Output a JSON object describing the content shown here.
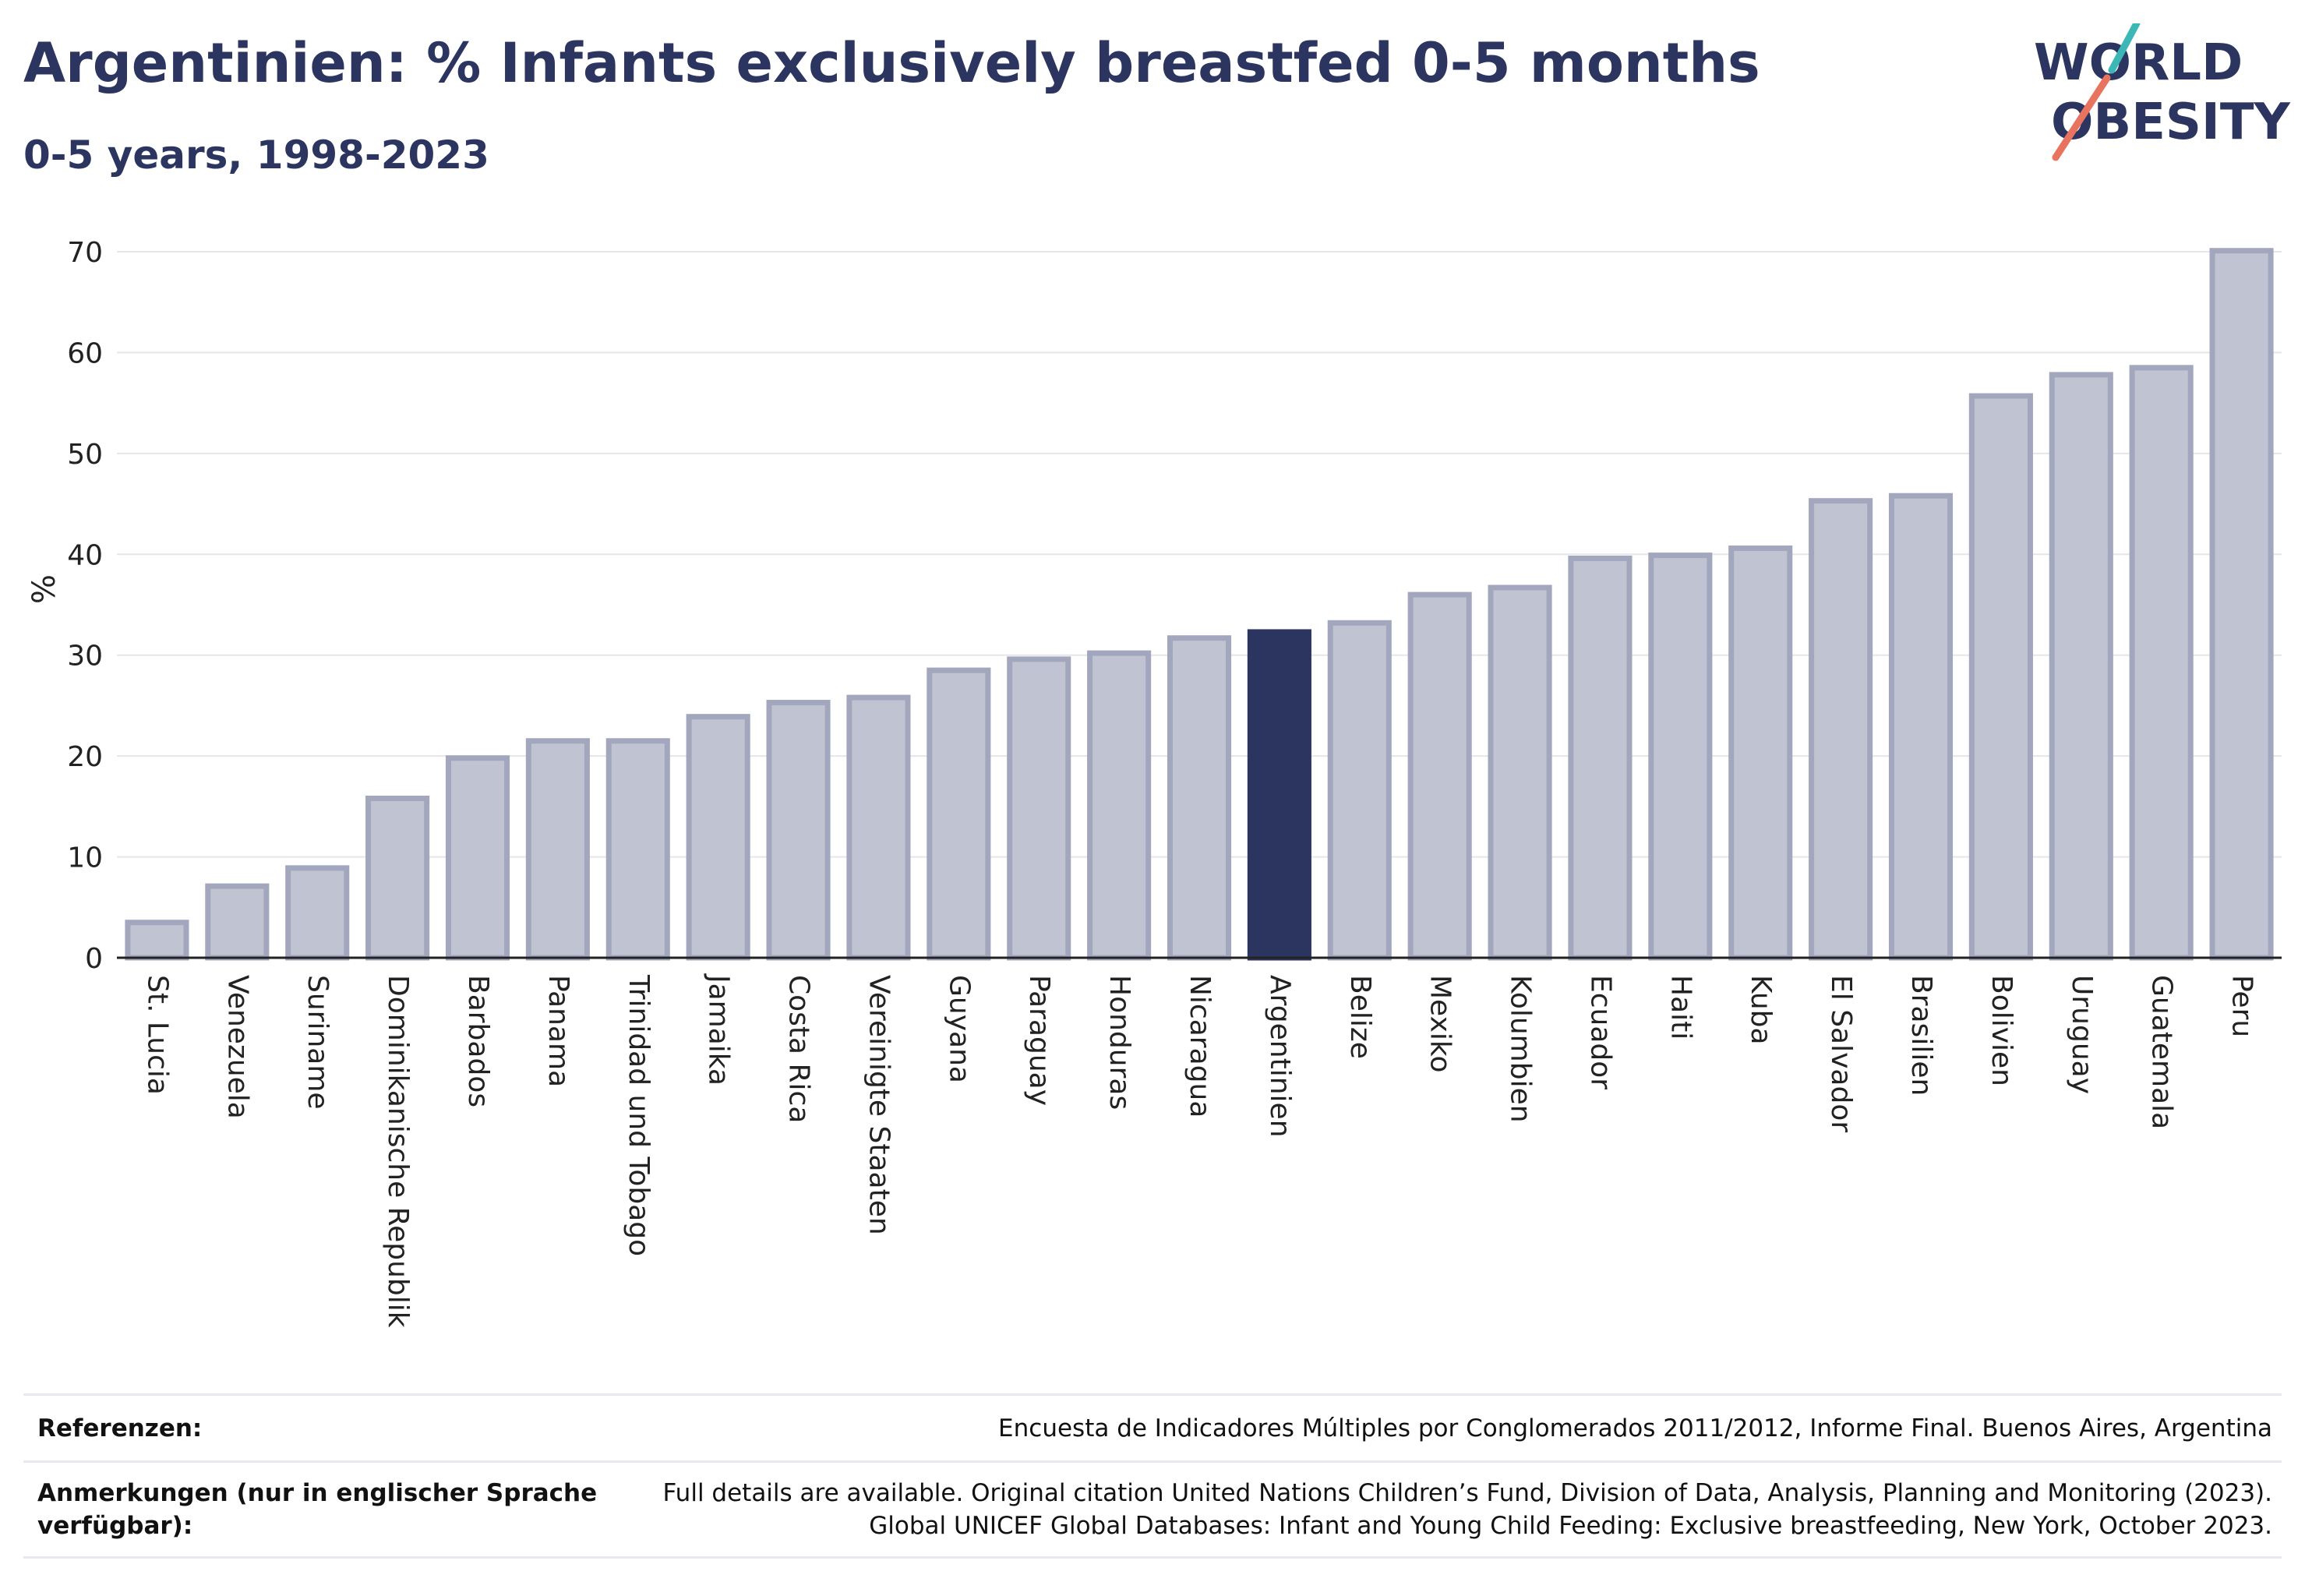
{
  "header": {
    "title": "Argentinien: % Infants exclusively breastfed 0-5 months",
    "subtitle": "0-5 years, 1998-2023"
  },
  "logo": {
    "line1": "WORLD",
    "line2": "OBESITY",
    "accent_teal": "#3bb8b6",
    "accent_coral": "#e8735f"
  },
  "chart_data": {
    "type": "bar",
    "title": "Argentinien: % Infants exclusively breastfed 0-5 months",
    "subtitle": "0-5 years, 1998-2023",
    "xlabel": "",
    "ylabel": "%",
    "ylim": [
      0,
      70
    ],
    "yticks": [
      0,
      10,
      20,
      30,
      40,
      50,
      60,
      70
    ],
    "grid": true,
    "highlight": "Argentinien",
    "colors": {
      "bar": "#c0c3d1",
      "bar_edge": "#a3a7bd",
      "highlight": "#2b3560"
    },
    "categories": [
      "St. Lucia",
      "Venezuela",
      "Suriname",
      "Dominikanische Republik",
      "Barbados",
      "Panama",
      "Trinidad und Tobago",
      "Jamaika",
      "Costa Rica",
      "Vereinigte Staaten",
      "Guyana",
      "Paraguay",
      "Honduras",
      "Nicaragua",
      "Argentinien",
      "Belize",
      "Mexiko",
      "Kolumbien",
      "Ecuador",
      "Haiti",
      "Kuba",
      "El Salvador",
      "Brasilien",
      "Bolivien",
      "Uruguay",
      "Guatemala",
      "Peru"
    ],
    "values": [
      3.5,
      7.1,
      8.9,
      15.8,
      19.8,
      21.5,
      21.5,
      23.9,
      25.3,
      25.8,
      28.5,
      29.6,
      30.2,
      31.7,
      32.3,
      33.2,
      36.0,
      36.7,
      39.6,
      39.9,
      40.6,
      45.3,
      45.8,
      55.7,
      57.8,
      58.5,
      70.1
    ]
  },
  "footer": {
    "references_label": "Referenzen:",
    "references_text": "Encuesta de Indicadores Múltiples por Conglomerados 2011/2012, Informe Final. Buenos Aires, Argentina",
    "notes_label_line1": "Anmerkungen (nur in englischer Sprache",
    "notes_label_line2": "verfügbar):",
    "notes_text_line1": "Full details are available. Original citation United Nations Children’s Fund, Division of Data, Analysis, Planning and Monitoring (2023).",
    "notes_text_line2": "Global UNICEF Global Databases: Infant and Young Child Feeding: Exclusive breastfeeding, New York, October 2023."
  }
}
